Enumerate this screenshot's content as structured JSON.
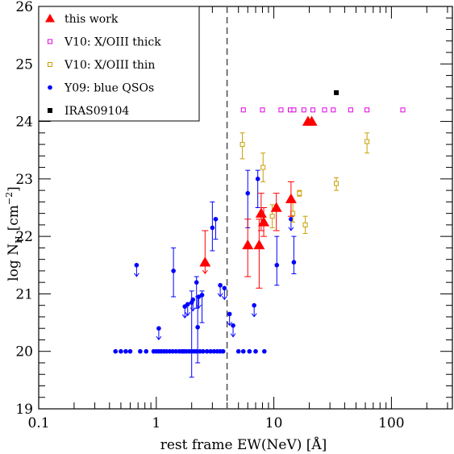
{
  "chart_data": {
    "type": "scatter",
    "xlabel": "rest frame EW(NeV) [Å]",
    "ylabel_main": "log N",
    "ylabel_sub": "H",
    "ylabel_unit": "[cm",
    "ylabel_exp": "−2",
    "ylabel_close": "]",
    "x_scale": "log",
    "xlim": [
      0.1,
      330
    ],
    "ylim": [
      19,
      26
    ],
    "x_ticks": [
      {
        "value": 0.1,
        "label": "0.1"
      },
      {
        "value": 1,
        "label": "1"
      },
      {
        "value": 10,
        "label": "10"
      },
      {
        "value": 100,
        "label": "100"
      }
    ],
    "y_ticks": [
      {
        "value": 19,
        "label": "19"
      },
      {
        "value": 20,
        "label": "20"
      },
      {
        "value": 21,
        "label": "21"
      },
      {
        "value": 22,
        "label": "22"
      },
      {
        "value": 23,
        "label": "23"
      },
      {
        "value": 24,
        "label": "24"
      },
      {
        "value": 25,
        "label": "25"
      },
      {
        "value": 26,
        "label": "26"
      }
    ],
    "vline_x": 4.0,
    "legend_position": "top-left",
    "series": [
      {
        "name": "this work",
        "marker": "triangle",
        "color": "#ff0000",
        "points": [
          {
            "x": 2.6,
            "y": 21.55,
            "lo": 21.55,
            "hi": 22.1,
            "upper": true
          },
          {
            "x": 6.0,
            "y": 21.85,
            "lo": 21.3,
            "hi": 22.3
          },
          {
            "x": 7.5,
            "y": 21.85,
            "lo": 21.1,
            "hi": 22.3
          },
          {
            "x": 7.8,
            "y": 22.4,
            "lo": 22.1,
            "hi": 22.75
          },
          {
            "x": 8.2,
            "y": 22.25,
            "lo": 22.0,
            "hi": 22.5
          },
          {
            "x": 10.5,
            "y": 22.5,
            "lo": 22.1,
            "hi": 22.75
          },
          {
            "x": 14.0,
            "y": 22.65,
            "lo": 22.35,
            "hi": 22.95
          },
          {
            "x": 19.5,
            "y": 24.0
          },
          {
            "x": 21.0,
            "y": 24.0
          }
        ]
      },
      {
        "name": "V10: X/OIII thick",
        "marker": "open-square",
        "color": "#e000e0",
        "points": [
          {
            "x": 5.5,
            "y": 24.2
          },
          {
            "x": 8.0,
            "y": 24.2
          },
          {
            "x": 11.5,
            "y": 24.2
          },
          {
            "x": 13.8,
            "y": 24.2
          },
          {
            "x": 14.8,
            "y": 24.2
          },
          {
            "x": 18.0,
            "y": 24.2
          },
          {
            "x": 21.5,
            "y": 24.2
          },
          {
            "x": 27.0,
            "y": 24.2
          },
          {
            "x": 32.0,
            "y": 24.2
          },
          {
            "x": 45.0,
            "y": 24.2
          },
          {
            "x": 62.0,
            "y": 24.2
          },
          {
            "x": 125.0,
            "y": 24.2
          }
        ]
      },
      {
        "name": "V10: X/OIII thin",
        "marker": "open-square",
        "color": "#c8a000",
        "points": [
          {
            "x": 5.4,
            "y": 23.6,
            "lo": 23.35,
            "hi": 23.8
          },
          {
            "x": 8.1,
            "y": 23.2,
            "lo": 22.95,
            "hi": 23.45
          },
          {
            "x": 9.7,
            "y": 22.35,
            "lo": 22.15,
            "hi": 22.55
          },
          {
            "x": 14.5,
            "y": 22.4,
            "lo": 22.25,
            "hi": 22.6
          },
          {
            "x": 16.5,
            "y": 22.75,
            "lo": 22.7,
            "hi": 22.8
          },
          {
            "x": 18.5,
            "y": 22.2,
            "lo": 22.05,
            "hi": 22.35
          },
          {
            "x": 34.0,
            "y": 22.92,
            "lo": 22.8,
            "hi": 23.02
          },
          {
            "x": 62.0,
            "y": 23.65,
            "lo": 23.45,
            "hi": 23.8
          }
        ]
      },
      {
        "name": "Y09: blue QSOs",
        "marker": "filled-circle",
        "color": "#0000ff",
        "points": [
          {
            "x": 0.68,
            "y": 21.5,
            "upper": true
          },
          {
            "x": 1.05,
            "y": 20.4,
            "upper": true
          },
          {
            "x": 1.4,
            "y": 21.4,
            "lo": 20.95,
            "hi": 21.8
          },
          {
            "x": 1.75,
            "y": 20.78,
            "upper": true
          },
          {
            "x": 1.85,
            "y": 20.82,
            "upper": true
          },
          {
            "x": 2.0,
            "y": 20.85,
            "lo": 19.55,
            "hi": 21.05
          },
          {
            "x": 2.05,
            "y": 20.9,
            "upper": true
          },
          {
            "x": 2.2,
            "y": 21.2,
            "lo": 20.75,
            "hi": 21.3
          },
          {
            "x": 2.25,
            "y": 20.42,
            "lo": 19.8,
            "hi": 20.95
          },
          {
            "x": 2.3,
            "y": 20.95,
            "upper": true
          },
          {
            "x": 2.45,
            "y": 20.98,
            "lo": 20.5,
            "hi": 21.05
          },
          {
            "x": 3.0,
            "y": 22.15,
            "lo": 21.75,
            "hi": 22.6
          },
          {
            "x": 3.2,
            "y": 22.3,
            "lo": 21.95,
            "hi": 22.3
          },
          {
            "x": 3.5,
            "y": 21.15,
            "upper": true
          },
          {
            "x": 3.8,
            "y": 21.1,
            "upper": true
          },
          {
            "x": 4.2,
            "y": 20.65,
            "upper": true
          },
          {
            "x": 4.5,
            "y": 20.45,
            "upper": true
          },
          {
            "x": 6.0,
            "y": 22.75,
            "lo": 22.15,
            "hi": 23.15
          },
          {
            "x": 6.8,
            "y": 20.8,
            "upper": true
          },
          {
            "x": 7.3,
            "y": 23.0,
            "lo": 22.5,
            "hi": 23.15
          },
          {
            "x": 10.6,
            "y": 21.5,
            "lo": 21.15,
            "hi": 22.0
          },
          {
            "x": 14.0,
            "y": 22.3,
            "upper": true
          },
          {
            "x": 14.8,
            "y": 21.55,
            "lo": 21.35,
            "hi": 22.0
          },
          {
            "x": 0.45,
            "y": 20.0
          },
          {
            "x": 0.5,
            "y": 20.0
          },
          {
            "x": 0.55,
            "y": 20.0
          },
          {
            "x": 0.6,
            "y": 20.0
          },
          {
            "x": 0.73,
            "y": 20.0
          },
          {
            "x": 0.82,
            "y": 20.0
          },
          {
            "x": 0.95,
            "y": 20.0
          },
          {
            "x": 1.0,
            "y": 20.0
          },
          {
            "x": 1.05,
            "y": 20.0
          },
          {
            "x": 1.1,
            "y": 20.0
          },
          {
            "x": 1.16,
            "y": 20.0
          },
          {
            "x": 1.22,
            "y": 20.0
          },
          {
            "x": 1.3,
            "y": 20.0
          },
          {
            "x": 1.38,
            "y": 20.0
          },
          {
            "x": 1.47,
            "y": 20.0
          },
          {
            "x": 1.57,
            "y": 20.0
          },
          {
            "x": 1.65,
            "y": 20.0
          },
          {
            "x": 1.72,
            "y": 20.0
          },
          {
            "x": 1.8,
            "y": 20.0
          },
          {
            "x": 1.9,
            "y": 20.0
          },
          {
            "x": 2.0,
            "y": 20.0
          },
          {
            "x": 2.1,
            "y": 20.0
          },
          {
            "x": 2.2,
            "y": 20.0
          },
          {
            "x": 2.35,
            "y": 20.0
          },
          {
            "x": 2.5,
            "y": 20.0
          },
          {
            "x": 2.7,
            "y": 20.0
          },
          {
            "x": 2.9,
            "y": 20.0
          },
          {
            "x": 3.1,
            "y": 20.0
          },
          {
            "x": 3.3,
            "y": 20.0
          },
          {
            "x": 3.5,
            "y": 20.0
          },
          {
            "x": 3.7,
            "y": 20.0
          },
          {
            "x": 5.0,
            "y": 20.0
          },
          {
            "x": 5.5,
            "y": 20.0
          },
          {
            "x": 6.2,
            "y": 20.0
          },
          {
            "x": 7.0,
            "y": 20.0
          },
          {
            "x": 8.3,
            "y": 20.0
          }
        ]
      },
      {
        "name": "IRAS09104",
        "marker": "filled-square",
        "color": "#000000",
        "points": [
          {
            "x": 34.0,
            "y": 24.5
          }
        ]
      }
    ]
  }
}
